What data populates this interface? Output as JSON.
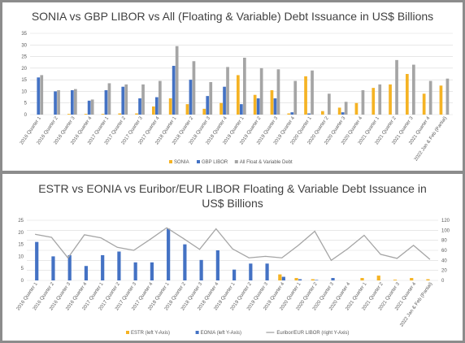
{
  "chart_data": [
    {
      "type": "bar",
      "title": "SONIA vs GBP LIBOR vs All (Floating & Variable) Debt Issuance in US$ Billions",
      "categories": [
        "2016 Quarter 1",
        "2016 Quarter 2",
        "2016 Quarter 3",
        "2016 Quarter 4",
        "2017 Quarter 1",
        "2017 Quarter 2",
        "2017 Quarter 3",
        "2017 Quarter 4",
        "2018 Quarter 1",
        "2018 Quarter 2",
        "2018 Quarter 3",
        "2018 Quarter 4",
        "2019 Quarter 1",
        "2019 Quarter 2",
        "2019 Quarter 3",
        "2019 Quarter 4",
        "2020 Quarter 1",
        "2020 Quarter 2",
        "2020 Quarter 3",
        "2020 Quarter 4",
        "2021 Quarter 1",
        "2021 Quarter 2",
        "2021 Quarter 3",
        "2021 Quarter 4",
        "2022 Jan & Feb (Partial)"
      ],
      "ylim": [
        0,
        35
      ],
      "yticks": [
        0,
        5,
        10,
        15,
        20,
        25,
        30,
        35
      ],
      "grid": true,
      "legend": "bottom",
      "series": [
        {
          "name": "SONIA",
          "color": "#f5b324",
          "values": [
            0,
            0,
            0.3,
            0.3,
            0.3,
            0.5,
            0.5,
            3.5,
            7,
            4.5,
            2.5,
            5,
            17,
            8.5,
            10.5,
            0.5,
            16.5,
            1.5,
            3,
            5,
            11.5,
            13,
            17.5,
            9,
            12.5
          ]
        },
        {
          "name": "GBP LIBOR",
          "color": "#4472c4",
          "values": [
            16,
            10,
            10.5,
            6,
            10.5,
            12,
            7,
            7.5,
            21,
            15,
            8,
            12,
            4.5,
            7,
            7,
            1,
            0.5,
            0,
            1,
            0,
            0,
            0,
            0,
            0,
            0
          ]
        },
        {
          "name": "All Float & Variable Debt",
          "color": "#a5a5a5",
          "values": [
            17,
            10.5,
            11,
            6.5,
            13.5,
            13,
            13,
            14.5,
            29.5,
            23,
            14,
            20.5,
            24.5,
            20,
            19.5,
            14.5,
            19,
            9,
            5.5,
            10.5,
            13,
            23.5,
            21.5,
            14.5,
            15.5
          ]
        }
      ]
    },
    {
      "type": "bar",
      "title": "ESTR vs EONIA vs Euribor/EUR LIBOR Floating & Variable Debt Issuance in US$ Billions",
      "categories": [
        "2016 Quarter 1",
        "2016 Quarter 2",
        "2016 Quarter 3",
        "2016 Quarter 4",
        "2017 Quarter 1",
        "2017 Quarter 2",
        "2017 Quarter 3",
        "2017 Quarter 4",
        "2018 Quarter 1",
        "2018 Quarter 2",
        "2018 Quarter 3",
        "2018 Quarter 4",
        "2019 Quarter 1",
        "2019 Quarter 2",
        "2019 Quarter 3",
        "2019 Quarter 4",
        "2020 Quarter 1",
        "2020 Quarter 2",
        "2020 Quarter 3",
        "2020 Quarter 4",
        "2021 Quarter 1",
        "2021 Quarter 2",
        "2021 Quarter 3",
        "2021 Quarter 4",
        "2022 Jan & Feb (Partial)"
      ],
      "ylim_left": [
        0,
        25
      ],
      "yticks_left": [
        0,
        5,
        10,
        15,
        20,
        25
      ],
      "ylim_right": [
        0,
        120
      ],
      "yticks_right": [
        0,
        20,
        40,
        60,
        80,
        100,
        120
      ],
      "grid": true,
      "legend": "bottom",
      "series": [
        {
          "name": "ESTR (left Y-Axis)",
          "color": "#f5b324",
          "axis": "left",
          "kind": "bar",
          "values": [
            0,
            0,
            0,
            0,
            0,
            0,
            0,
            0,
            0,
            0,
            0,
            0,
            0,
            0,
            0,
            2.5,
            1,
            0.5,
            0,
            0,
            1,
            2,
            0.3,
            1,
            0.5
          ]
        },
        {
          "name": "EONIA (left Y-Axis)",
          "color": "#4472c4",
          "axis": "left",
          "kind": "bar",
          "values": [
            16,
            10,
            10.5,
            6,
            10.5,
            12,
            7.5,
            7.5,
            21.5,
            15,
            8.5,
            12.5,
            4.5,
            7,
            7,
            1.5,
            0.5,
            0.2,
            1,
            0,
            0,
            0,
            0,
            0,
            0
          ]
        },
        {
          "name": "Euribor/EUR LIBOR (right Y-Axis)",
          "color": "#a5a5a5",
          "axis": "right",
          "kind": "line",
          "values": [
            92,
            86,
            45,
            91,
            85,
            66,
            60,
            82,
            105,
            84,
            62,
            103,
            63,
            45,
            48,
            45,
            70,
            98,
            40,
            63,
            90,
            52,
            44,
            70,
            42
          ]
        }
      ]
    }
  ]
}
